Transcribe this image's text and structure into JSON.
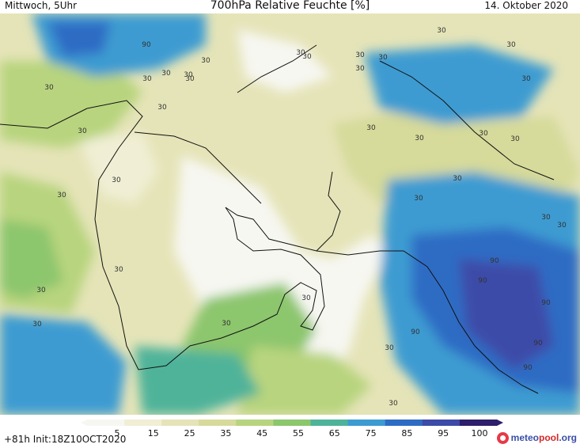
{
  "header": {
    "left": "Mittwoch, 5Uhr",
    "title": "700hPa Relative Feuchte [%]",
    "date": "14. Oktober 2020"
  },
  "footer": {
    "run": "+81h  Init:18Z10OCT2020",
    "brand_part1": "meteo",
    "brand_part2": "pool",
    "brand_part3": ".org"
  },
  "legend": {
    "ticks": [
      "5",
      "15",
      "25",
      "35",
      "45",
      "55",
      "65",
      "75",
      "85",
      "95",
      "100"
    ],
    "colors": [
      "#f7f7f2",
      "#f0efd5",
      "#e5e4b8",
      "#d6da9a",
      "#b8d47e",
      "#8cc66d",
      "#4fb39a",
      "#3c9bd1",
      "#2e6cc4",
      "#3c4ba8",
      "#2e1e6b"
    ]
  },
  "contour_labels": [
    "90",
    "30",
    "30",
    "30",
    "30",
    "30",
    "30",
    "30",
    "30",
    "30",
    "30",
    "30",
    "30",
    "30",
    "30",
    "30",
    "30",
    "30",
    "30",
    "30",
    "30",
    "30",
    "30",
    "30",
    "30",
    "30",
    "30",
    "30",
    "30",
    "30",
    "90",
    "30",
    "90",
    "90",
    "90",
    "90",
    "90",
    "30",
    "30",
    "30"
  ]
}
